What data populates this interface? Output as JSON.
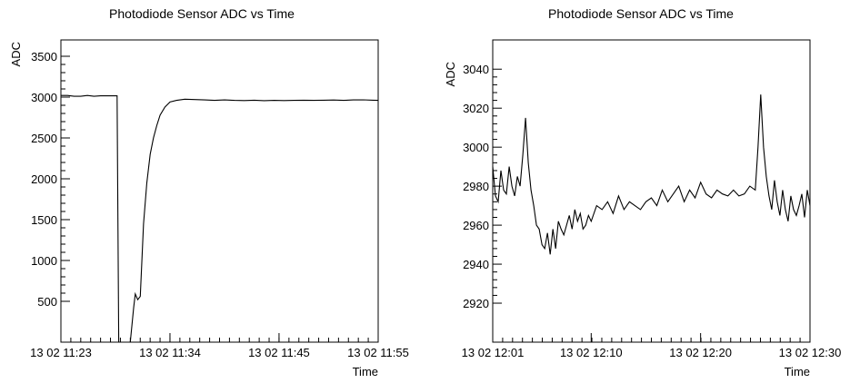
{
  "chart_data": [
    {
      "type": "line",
      "title": "Photodiode Sensor ADC vs Time",
      "xlabel": "Time",
      "ylabel": "ADC",
      "xlim": [
        "13 02 11:23",
        "13 02 11:55"
      ],
      "ylim": [
        0,
        3700
      ],
      "x_ticks": [
        "13 02 11:23",
        "13 02 11:34",
        "13 02 11:45",
        "13 02 11:55"
      ],
      "y_ticks": [
        500,
        1000,
        1500,
        2000,
        2500,
        3000,
        3500
      ],
      "grid": false,
      "series": [
        {
          "x": [
            "11:23:00",
            "11:23:40",
            "11:24:20",
            "11:25:00",
            "11:25:40",
            "11:26:20",
            "11:27:00",
            "11:27:40",
            "11:28:20",
            "11:28:40",
            "11:28:50",
            "11:29:10",
            "11:29:40",
            "11:30:00",
            "11:30:20",
            "11:30:30",
            "11:30:45",
            "11:31:00",
            "11:31:20",
            "11:31:40",
            "11:32:00",
            "11:32:20",
            "11:32:40",
            "11:33:00",
            "11:33:30",
            "11:34:00",
            "11:34:40",
            "11:35:30",
            "11:36:30",
            "11:37:30",
            "11:38:30",
            "11:39:30",
            "11:40:30",
            "11:41:30",
            "11:42:30",
            "11:43:30",
            "11:44:30",
            "11:45:30",
            "11:46:30",
            "11:47:30",
            "11:48:30",
            "11:49:30",
            "11:50:30",
            "11:51:30",
            "11:52:30",
            "11:53:30",
            "11:54:30",
            "11:55:00"
          ],
          "y": [
            3020,
            3020,
            3010,
            3010,
            3020,
            3010,
            3015,
            3015,
            3015,
            3015,
            0,
            0,
            0,
            0,
            420,
            590,
            520,
            560,
            1450,
            1950,
            2300,
            2500,
            2650,
            2780,
            2880,
            2940,
            2960,
            2975,
            2970,
            2965,
            2960,
            2965,
            2960,
            2958,
            2962,
            2957,
            2960,
            2958,
            2960,
            2962,
            2960,
            2962,
            2964,
            2960,
            2965,
            2967,
            2962,
            2960
          ]
        }
      ]
    },
    {
      "type": "line",
      "title": "Photodiode Sensor ADC vs Time",
      "xlabel": "Time",
      "ylabel": "ADC",
      "xlim": [
        "13 02 12:01",
        "13 02 12:30"
      ],
      "ylim": [
        2900,
        3055
      ],
      "x_ticks": [
        "13 02 12:01",
        "13 02 12:10",
        "13 02 12:20",
        "13 02 12:30"
      ],
      "y_ticks": [
        2920,
        2940,
        2960,
        2980,
        3000,
        3020,
        3040
      ],
      "grid": false,
      "series": [
        {
          "x": [
            "12:01:00",
            "12:01:15",
            "12:01:30",
            "12:01:45",
            "12:02:00",
            "12:02:15",
            "12:02:30",
            "12:02:45",
            "12:03:00",
            "12:03:15",
            "12:03:30",
            "12:03:45",
            "12:04:00",
            "12:04:15",
            "12:04:30",
            "12:04:45",
            "12:05:00",
            "12:05:15",
            "12:05:30",
            "12:05:45",
            "12:06:00",
            "12:06:15",
            "12:06:30",
            "12:06:45",
            "12:07:00",
            "12:07:15",
            "12:07:30",
            "12:07:45",
            "12:08:00",
            "12:08:15",
            "12:08:30",
            "12:08:45",
            "12:09:00",
            "12:09:15",
            "12:09:30",
            "12:09:45",
            "12:10:00",
            "12:10:30",
            "12:11:00",
            "12:11:30",
            "12:12:00",
            "12:12:30",
            "12:13:00",
            "12:13:30",
            "12:14:00",
            "12:14:30",
            "12:15:00",
            "12:15:30",
            "12:16:00",
            "12:16:30",
            "12:17:00",
            "12:17:30",
            "12:18:00",
            "12:18:30",
            "12:19:00",
            "12:19:30",
            "12:20:00",
            "12:20:30",
            "12:21:00",
            "12:21:30",
            "12:22:00",
            "12:22:30",
            "12:23:00",
            "12:23:30",
            "12:24:00",
            "12:24:30",
            "12:25:00",
            "12:25:15",
            "12:25:30",
            "12:25:45",
            "12:26:00",
            "12:26:15",
            "12:26:30",
            "12:26:45",
            "12:27:00",
            "12:27:15",
            "12:27:30",
            "12:27:45",
            "12:28:00",
            "12:28:15",
            "12:28:30",
            "12:28:45",
            "12:29:00",
            "12:29:15",
            "12:29:30",
            "12:29:45",
            "12:30:00"
          ],
          "y": [
            2990,
            2975,
            2972,
            2988,
            2978,
            2976,
            2990,
            2980,
            2975,
            2985,
            2980,
            2996,
            3015,
            2992,
            2978,
            2970,
            2960,
            2958,
            2950,
            2948,
            2956,
            2945,
            2958,
            2948,
            2962,
            2958,
            2955,
            2960,
            2965,
            2958,
            2968,
            2962,
            2966,
            2958,
            2960,
            2965,
            2962,
            2970,
            2968,
            2972,
            2966,
            2975,
            2968,
            2972,
            2970,
            2968,
            2972,
            2974,
            2970,
            2978,
            2972,
            2976,
            2980,
            2972,
            2978,
            2974,
            2982,
            2976,
            2974,
            2978,
            2976,
            2975,
            2978,
            2975,
            2976,
            2980,
            2978,
            3000,
            3027,
            3000,
            2985,
            2975,
            2968,
            2983,
            2972,
            2965,
            2978,
            2968,
            2962,
            2975,
            2968,
            2965,
            2970,
            2976,
            2964,
            2978,
            2970
          ]
        }
      ]
    }
  ]
}
